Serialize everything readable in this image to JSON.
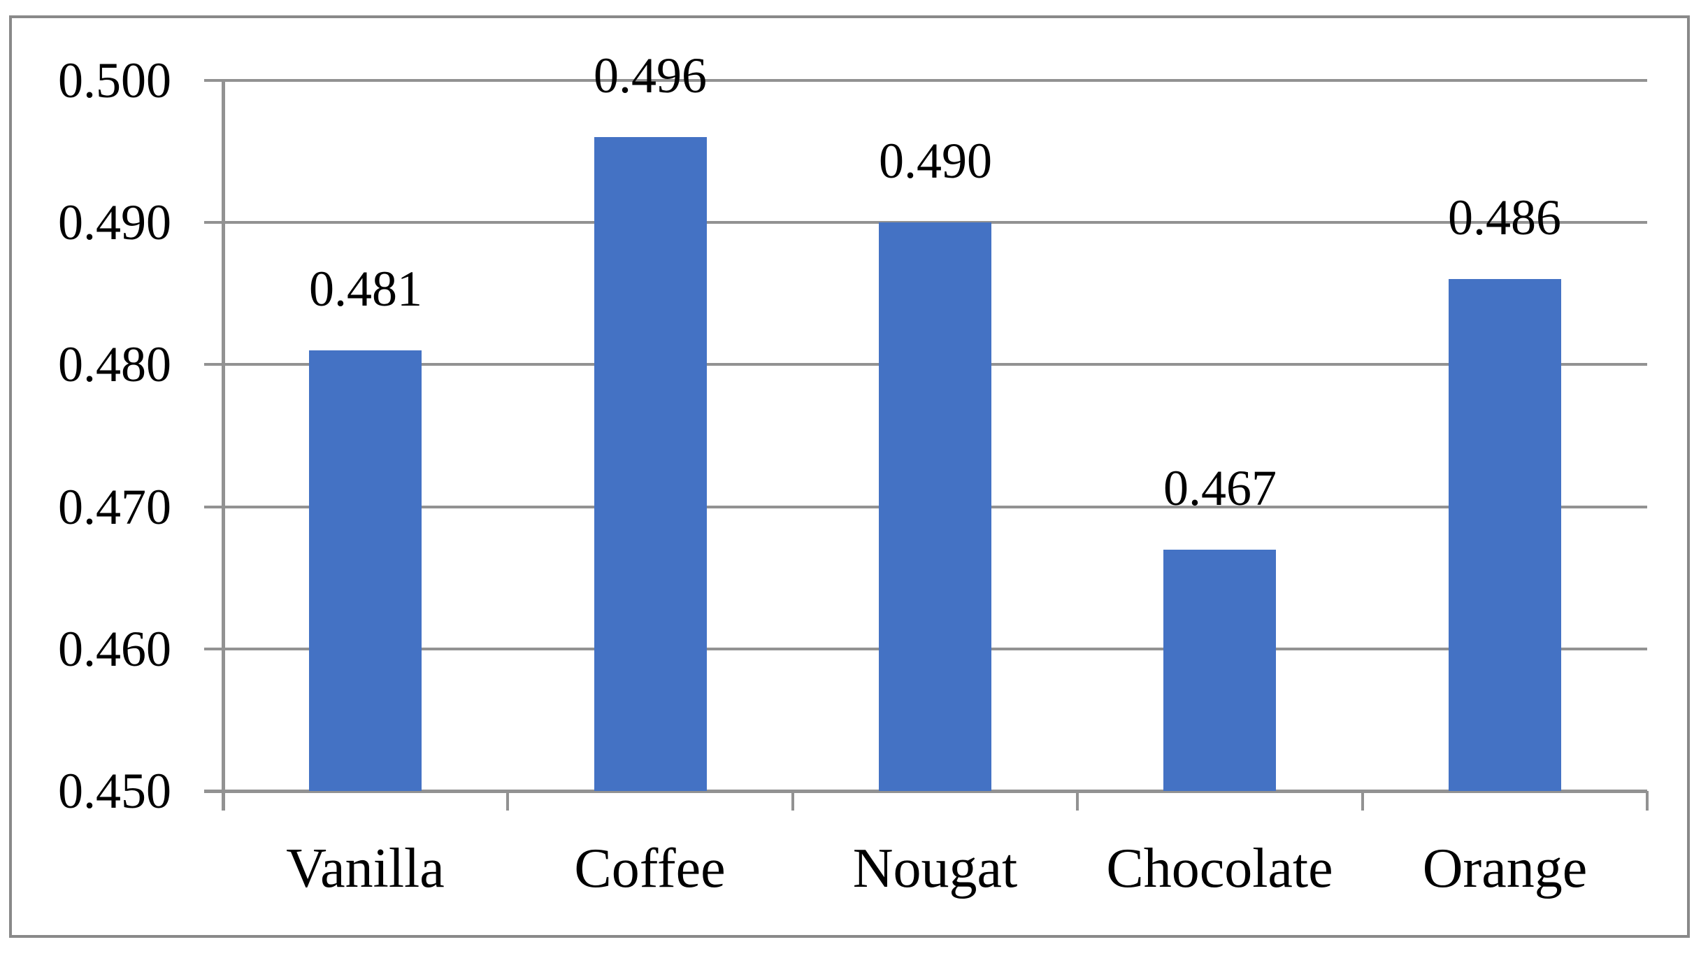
{
  "figure": {
    "kind": "standalone chart figure",
    "background_color": "#FFFFFF",
    "frame_border_color": "#898989"
  },
  "chart_data": {
    "type": "bar",
    "title": "",
    "xlabel": "",
    "ylabel": "",
    "categories": [
      "Vanilla",
      "Coffee",
      "Nougat",
      "Chocolate",
      "Orange"
    ],
    "values": [
      0.481,
      0.496,
      0.49,
      0.467,
      0.486
    ],
    "value_labels": [
      "0.481",
      "0.496",
      "0.490",
      "0.467",
      "0.486"
    ],
    "ylim": [
      0.45,
      0.5
    ],
    "ytick_step": 0.01,
    "ytick_labels_top_to_bottom": [
      "0.500",
      "0.490",
      "0.480",
      "0.470",
      "0.460",
      "0.450"
    ],
    "grid": true,
    "gridlines": "horizontal",
    "legend": null,
    "bar_color": "#4472C4",
    "gridline_color": "#929292",
    "axis_color": "#929292",
    "text_color": "#000000"
  }
}
